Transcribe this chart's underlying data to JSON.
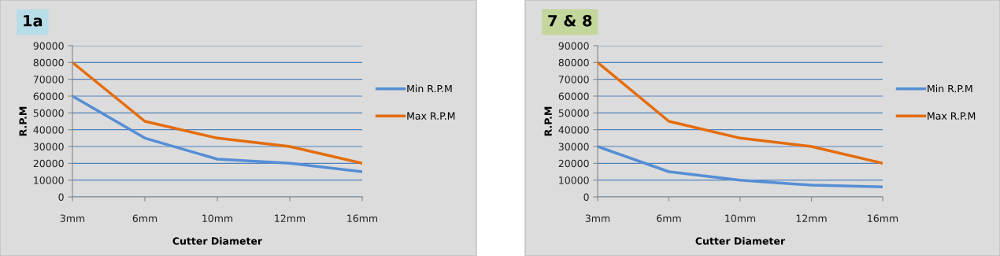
{
  "chart_data": [
    {
      "type": "line",
      "title": "1a",
      "xlabel": "Cutter Diameter",
      "ylabel": "R.P.M",
      "categories": [
        "3mm",
        "6mm",
        "10mm",
        "12mm",
        "16mm"
      ],
      "series": [
        {
          "name": "Min R.P.M",
          "color": "#558ed5",
          "values": [
            60000,
            35000,
            22500,
            20000,
            15000
          ]
        },
        {
          "name": "Max R.P.M",
          "color": "#e46c0a",
          "values": [
            80000,
            45000,
            35000,
            30000,
            20000
          ]
        }
      ],
      "ylim": [
        0,
        90000
      ],
      "yticks": [
        0,
        10000,
        20000,
        30000,
        40000,
        50000,
        60000,
        70000,
        80000,
        90000
      ],
      "grid": "y",
      "legend": "right"
    },
    {
      "type": "line",
      "title": "7 & 8",
      "xlabel": "Cutter Diameter",
      "ylabel": "R.P.M",
      "categories": [
        "3mm",
        "6mm",
        "10mm",
        "12mm",
        "16mm"
      ],
      "series": [
        {
          "name": "Min R.P.M",
          "color": "#558ed5",
          "values": [
            30000,
            15000,
            10000,
            7000,
            6000
          ]
        },
        {
          "name": "Max R.P.M",
          "color": "#e46c0a",
          "values": [
            80000,
            45000,
            35000,
            30000,
            20000
          ]
        }
      ],
      "ylim": [
        0,
        90000
      ],
      "yticks": [
        0,
        10000,
        20000,
        30000,
        40000,
        50000,
        60000,
        70000,
        80000,
        90000
      ],
      "grid": "y",
      "legend": "right"
    }
  ]
}
